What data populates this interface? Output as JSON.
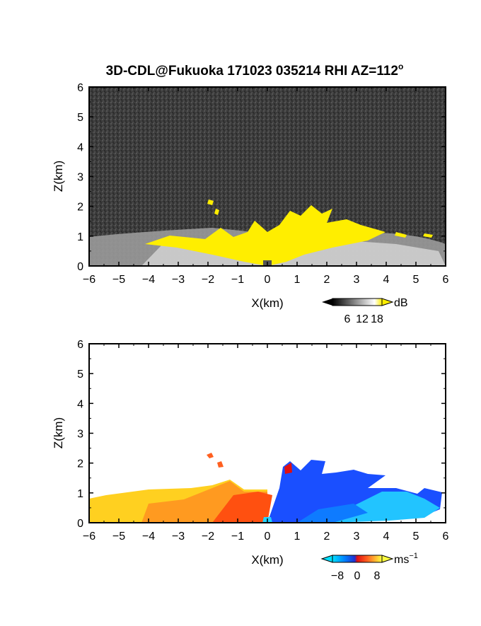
{
  "figure": {
    "title": "3D-CDL@Fukuoka 171023 035214 RHI AZ=112",
    "title_superscript": "o"
  },
  "chart_data": [
    {
      "type": "heatmap",
      "panel": "reflectivity",
      "xlabel": "X(km)",
      "ylabel": "Z(km)",
      "xlim": [
        -6,
        6
      ],
      "ylim": [
        0,
        6
      ],
      "x_ticks": [
        "−6",
        "−5",
        "−4",
        "−3",
        "−2",
        "−1",
        "0",
        "1",
        "2",
        "3",
        "4",
        "5",
        "6"
      ],
      "y_ticks": [
        "0",
        "1",
        "2",
        "3",
        "4",
        "5",
        "6"
      ],
      "colorbar": {
        "unit": "dB",
        "unit_superscript": "",
        "ticks": [
          "6",
          "12",
          "18"
        ],
        "range": [
          0,
          20
        ]
      },
      "colors": {
        "background": "#3a3a3a",
        "noise": "#505050",
        "saturated": "#ffee00",
        "low": "#1a1a1a",
        "high": "#f5f5f5"
      }
    },
    {
      "type": "heatmap",
      "panel": "doppler_velocity",
      "xlabel": "X(km)",
      "ylabel": "Z(km)",
      "xlim": [
        -6,
        6
      ],
      "ylim": [
        0,
        6
      ],
      "x_ticks": [
        "−6",
        "−5",
        "−4",
        "−3",
        "−2",
        "−1",
        "0",
        "1",
        "2",
        "3",
        "4",
        "5",
        "6"
      ],
      "y_ticks": [
        "0",
        "1",
        "2",
        "3",
        "4",
        "5",
        "6"
      ],
      "colorbar": {
        "unit": "ms",
        "unit_superscript": "−1",
        "ticks": [
          "−8",
          "0",
          "8"
        ],
        "range": [
          -10,
          10
        ]
      },
      "colors": {
        "toward": "#1f4fff",
        "away_light": "#ffe040",
        "zero": "#e33010",
        "background": "#ffffff"
      }
    }
  ]
}
